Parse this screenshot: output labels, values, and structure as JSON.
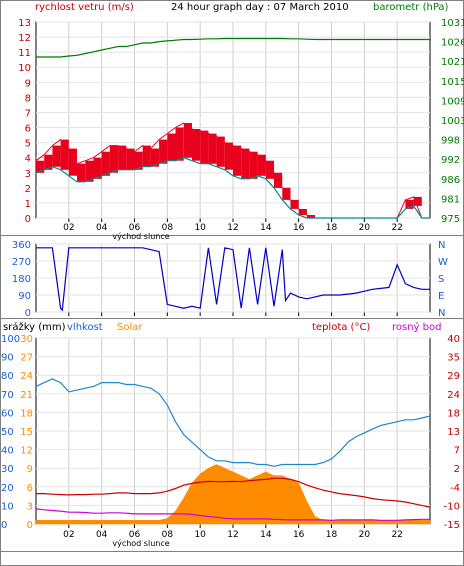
{
  "window_title": "24 hour graph day : 07 March 2010",
  "hour_ticks": [
    "02",
    "04",
    "06",
    "08",
    "10",
    "12",
    "14",
    "16",
    "18",
    "20",
    "22"
  ],
  "sunrise_label": "východ slunce",
  "colors": {
    "wind_avg": "#008b8b",
    "wind_gust": "#e8001c",
    "pressure": "#007a00",
    "direction": "#0000c8",
    "humidity": "#1e88c8",
    "temperature": "#c80000",
    "dewpoint": "#d000d0",
    "solar": "#ff8c00",
    "axis_blue": "#1a5fd0",
    "label_red": "#c80000",
    "label_green": "#007a00",
    "label_orange": "#ff8c00"
  },
  "chart_data": [
    {
      "type": "line",
      "name": "wind-pressure",
      "left_label": "rychlost vetru (m/s)",
      "right_label": "barometr (hPa)",
      "left_ticks": [
        "13",
        "12",
        "11",
        "10",
        "9",
        "8",
        "7",
        "6",
        "5",
        "4",
        "3",
        "2",
        "1",
        "0"
      ],
      "right_ticks": [
        "1031",
        "1026",
        "1021",
        "1015",
        "1009",
        "1003",
        "998",
        "992",
        "986",
        "981",
        "975"
      ],
      "ylim_left": [
        0,
        13
      ],
      "ylim_right": [
        975,
        1031
      ],
      "x_hours": [
        0,
        0.5,
        1,
        1.5,
        2,
        2.5,
        3,
        3.5,
        4,
        4.5,
        5,
        5.5,
        6,
        6.5,
        7,
        7.5,
        8,
        8.5,
        9,
        9.5,
        10,
        10.5,
        11,
        11.5,
        12,
        12.5,
        13,
        13.5,
        14,
        14.5,
        15,
        15.5,
        16,
        16.5,
        17,
        17.5,
        18,
        18.5,
        19,
        19.5,
        20,
        20.5,
        21,
        21.5,
        22,
        22.5,
        23,
        23.5,
        24
      ],
      "series": [
        {
          "name": "wind_gust",
          "values": [
            3.8,
            4.2,
            4.8,
            5.2,
            4.6,
            3.6,
            3.8,
            4.0,
            4.4,
            4.8,
            4.8,
            4.6,
            4.4,
            4.8,
            4.6,
            5.2,
            5.6,
            6.0,
            6.3,
            5.9,
            5.8,
            5.6,
            5.4,
            5.0,
            4.8,
            4.6,
            4.4,
            4.2,
            3.8,
            3.0,
            2.0,
            1.2,
            0.6,
            0.2,
            0,
            0,
            0,
            0,
            0,
            0,
            0,
            0,
            0,
            0,
            0,
            1.2,
            1.4,
            0,
            0
          ]
        },
        {
          "name": "wind_avg",
          "values": [
            3.0,
            3.2,
            3.4,
            3.2,
            2.8,
            2.4,
            2.4,
            2.6,
            2.8,
            3.0,
            3.2,
            3.2,
            3.2,
            3.4,
            3.4,
            3.6,
            3.8,
            3.8,
            4.0,
            3.8,
            3.6,
            3.6,
            3.4,
            3.2,
            2.8,
            2.6,
            2.6,
            2.8,
            2.6,
            2.0,
            1.2,
            0.6,
            0.2,
            0,
            0,
            0,
            0,
            0,
            0,
            0,
            0,
            0,
            0,
            0,
            0,
            0.6,
            0.8,
            0,
            0
          ]
        },
        {
          "name": "pressure",
          "values": [
            1021,
            1021,
            1021,
            1021,
            1021.3,
            1021.5,
            1022,
            1022.5,
            1023,
            1023.5,
            1024,
            1024,
            1024.5,
            1025,
            1025,
            1025.4,
            1025.6,
            1025.8,
            1026,
            1026,
            1026.1,
            1026.2,
            1026.2,
            1026.3,
            1026.3,
            1026.3,
            1026.3,
            1026.3,
            1026.3,
            1026.3,
            1026.3,
            1026.2,
            1026.2,
            1026.1,
            1026,
            1026,
            1026,
            1026,
            1026,
            1026,
            1026,
            1026,
            1026,
            1026,
            1026,
            1026,
            1026,
            1026,
            1026
          ]
        }
      ]
    },
    {
      "type": "line",
      "name": "wind-direction",
      "left_ticks": [
        "360",
        "270",
        "180",
        "90",
        "0"
      ],
      "right_ticks": [
        "N",
        "W",
        "S",
        "E",
        "N"
      ],
      "ylim": [
        0,
        360
      ],
      "x_hours": [
        0,
        0.5,
        1,
        1.5,
        1.6,
        2,
        2.5,
        3,
        3.5,
        4,
        4.5,
        5,
        5.5,
        6,
        6.5,
        7,
        7.5,
        8,
        8.5,
        9,
        9.5,
        10,
        10.5,
        11,
        11.5,
        12,
        12.5,
        13,
        13.5,
        14,
        14.5,
        15,
        15.2,
        15.5,
        16,
        16.5,
        17,
        17.5,
        18,
        18.5,
        19,
        19.5,
        20,
        20.5,
        21,
        21.5,
        22,
        22.5,
        23,
        23.5,
        24
      ],
      "series": [
        {
          "name": "direction",
          "values": [
            340,
            340,
            340,
            20,
            10,
            340,
            340,
            340,
            340,
            340,
            340,
            340,
            340,
            340,
            340,
            330,
            320,
            40,
            30,
            20,
            30,
            20,
            340,
            40,
            340,
            330,
            20,
            340,
            40,
            340,
            30,
            330,
            60,
            100,
            80,
            70,
            80,
            90,
            90,
            90,
            95,
            100,
            110,
            120,
            125,
            130,
            250,
            150,
            130,
            120,
            120
          ]
        }
      ]
    },
    {
      "type": "line",
      "name": "humidity-temp-solar",
      "labels": {
        "rain": "srážky (mm)",
        "humidity": "vlhkost",
        "solar": "Solar",
        "temperature": "teplota (°C)",
        "dewpoint": "rosný bod"
      },
      "left_ticks_humidity": [
        "100",
        "90",
        "80",
        "70",
        "60",
        "50",
        "40",
        "30",
        "20",
        "10",
        "0"
      ],
      "left_ticks_rain": [
        "30",
        "27",
        "24",
        "21",
        "18",
        "15",
        "12",
        "9",
        "6",
        "3",
        "0"
      ],
      "right_ticks": [
        "40",
        "35",
        "29",
        "24",
        "18",
        "13",
        "7",
        "2",
        "-4",
        "-10",
        "-15"
      ],
      "ylim_humidity": [
        0,
        100
      ],
      "ylim_temperature": [
        -15,
        40
      ],
      "x_hours": [
        0,
        0.5,
        1,
        1.5,
        2,
        2.5,
        3,
        3.5,
        4,
        4.5,
        5,
        5.5,
        6,
        6.5,
        7,
        7.5,
        8,
        8.5,
        9,
        9.5,
        10,
        10.5,
        11,
        11.5,
        12,
        12.5,
        13,
        13.5,
        14,
        14.5,
        15,
        15.5,
        16,
        16.5,
        17,
        17.5,
        18,
        18.5,
        19,
        19.5,
        20,
        20.5,
        21,
        21.5,
        22,
        22.5,
        23,
        23.5,
        24
      ],
      "series": [
        {
          "name": "humidity",
          "values": [
            74,
            76,
            78,
            76,
            71,
            72,
            73,
            74,
            76,
            76,
            76,
            75,
            75,
            74,
            73,
            70,
            64,
            55,
            48,
            44,
            40,
            36,
            34,
            34,
            33,
            33,
            33,
            32,
            32,
            31,
            32,
            32,
            32,
            32,
            32,
            33,
            35,
            39,
            44,
            47,
            49,
            51,
            53,
            54,
            55,
            56,
            56,
            57,
            58
          ]
        },
        {
          "name": "temperature",
          "values": [
            -6,
            -6,
            -6.2,
            -6.3,
            -6.4,
            -6.3,
            -6.3,
            -6.2,
            -6.2,
            -6,
            -5.8,
            -5.8,
            -6,
            -6,
            -6,
            -5.8,
            -5.3,
            -4.5,
            -3.5,
            -3,
            -2.6,
            -2.4,
            -2.5,
            -2.5,
            -2.4,
            -2.5,
            -2.2,
            -2,
            -1.8,
            -1.5,
            -1.5,
            -1.8,
            -2.5,
            -3.5,
            -4.3,
            -5,
            -5.5,
            -6,
            -6.3,
            -6.6,
            -7,
            -7.5,
            -7.8,
            -8,
            -8.2,
            -8.5,
            -9,
            -9.5,
            -10
          ]
        },
        {
          "name": "dewpoint",
          "values": [
            -10.5,
            -10.8,
            -11,
            -11.2,
            -11.5,
            -11.5,
            -11.6,
            -11.8,
            -11.8,
            -11.7,
            -11.7,
            -11.8,
            -12,
            -12,
            -12,
            -12,
            -12,
            -12,
            -12,
            -12.2,
            -12.5,
            -12.8,
            -13,
            -13.3,
            -13.5,
            -13.5,
            -13.5,
            -13.5,
            -13.5,
            -13.6,
            -13.7,
            -13.8,
            -13.8,
            -13.8,
            -13.8,
            -13.8,
            -13.9,
            -13.8,
            -13.8,
            -13.8,
            -13.8,
            -13.8,
            -13.9,
            -13.9,
            -13.9,
            -13.8,
            -13.7,
            -13.6,
            -13.6
          ]
        },
        {
          "name": "solar",
          "values": [
            2,
            2,
            2,
            2,
            2,
            2,
            2,
            2,
            2,
            2,
            2,
            2,
            2,
            2,
            2,
            2,
            3,
            7,
            14,
            22,
            27,
            30,
            32,
            30,
            28,
            26,
            24,
            26,
            28,
            26,
            26,
            24,
            22,
            12,
            4,
            2,
            2,
            2,
            2,
            2,
            2,
            2,
            2,
            2,
            2,
            2,
            2,
            2,
            2
          ]
        }
      ]
    }
  ]
}
